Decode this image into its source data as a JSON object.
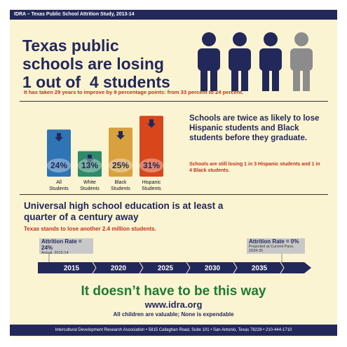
{
  "header": {
    "title": "IDRA – Texas Public School Attrition Study, 2013-14"
  },
  "headline": {
    "lines": [
      "Texas public",
      "schools are losing",
      "1 out of  4 students"
    ],
    "note": "It has taken 29 years to improve by 9 percentage points: from 33 percent to 24 percent."
  },
  "chart_data": {
    "type": "bar",
    "categories": [
      "All Students",
      "White Students",
      "Black Students",
      "Hispanic Students"
    ],
    "values": [
      24,
      13,
      25,
      31
    ],
    "value_labels": [
      "24%",
      "13%",
      "25%",
      "31%"
    ],
    "colors": [
      "#2f74b5",
      "#2e8a6b",
      "#d8a13e",
      "#d8461b"
    ],
    "ylim": [
      0,
      35
    ]
  },
  "findings": {
    "text": "Schools are twice as likely to lose Hispanic students and Black students before they graduate.",
    "note": "Schools are still losing 1 in 3 Hispanic students and 1 in 4 Black students."
  },
  "outlook": {
    "title": "Universal high school education is at least a quarter of a century away",
    "note": "Texas stands to lose another 2.4 million students."
  },
  "timeline": {
    "years": [
      2015,
      2020,
      2025,
      2030,
      2035
    ],
    "start": {
      "label": "Attrition Rate = 24%",
      "sub": "Actual, 2013-14"
    },
    "end": {
      "label": "Attrition Rate = 0%",
      "sub": "Projected at Current Pace, 2034-35"
    }
  },
  "closing": {
    "title": "It doesn’t have to be this way",
    "url": "www.idra.org",
    "tagline": "All children are valuable; None is expendable"
  },
  "footer": {
    "text": "Intercultural Development Research Association • 5815 Callaghan Road, Suite 101 • San Antonio, Texas 78228 • 210-444-1710"
  }
}
